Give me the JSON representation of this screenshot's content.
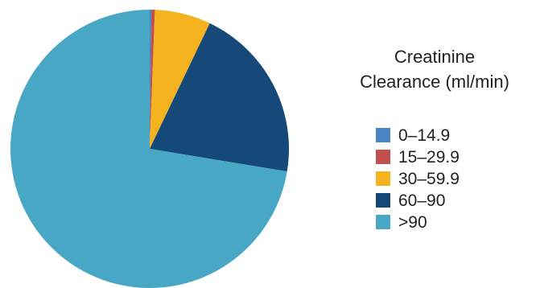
{
  "chart_data": {
    "type": "pie",
    "title": "",
    "legend_title_lines": [
      "Creatinine",
      "Clearance (ml/min)"
    ],
    "legend_placement": "right",
    "start_angle_deg": 0,
    "direction": "clockwise",
    "categories": [
      "0–14.9",
      "15–29.9",
      "30–59.9",
      "60–90",
      ">90"
    ],
    "values": [
      0.2,
      0.4,
      6.5,
      20.5,
      72.4
    ],
    "colors": [
      "#4a86c5",
      "#c0504d",
      "#f5b21f",
      "#154979",
      "#47a7c4"
    ]
  }
}
